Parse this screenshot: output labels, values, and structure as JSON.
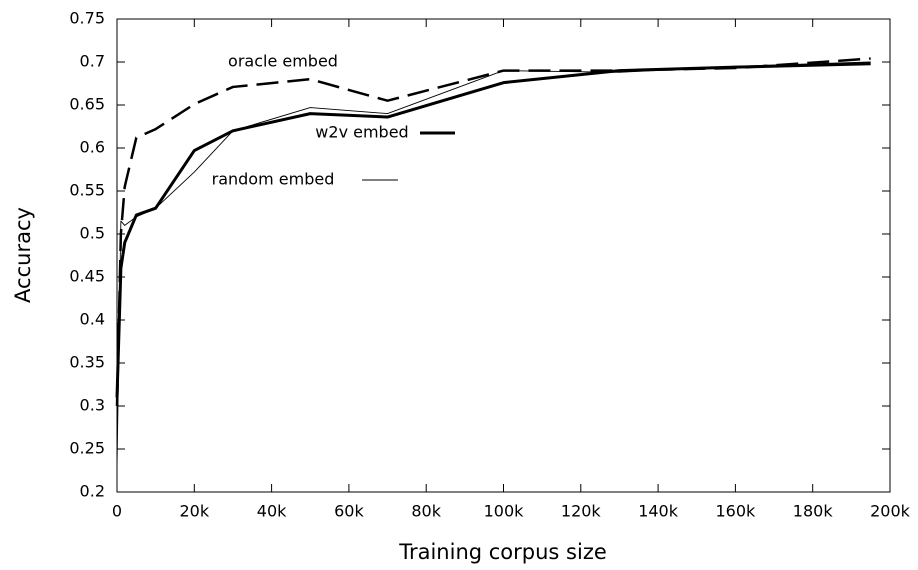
{
  "chart_data": {
    "type": "line",
    "xlabel": "Training corpus size",
    "ylabel": "Accuracy",
    "x": [
      0,
      1000,
      2000,
      5000,
      10000,
      20000,
      30000,
      50000,
      70000,
      100000,
      130000,
      160000,
      195000
    ],
    "series": [
      {
        "name": "oracle embed",
        "color": "#000000",
        "dashed": true,
        "values": [
          0.3,
          0.5,
          0.555,
          0.612,
          0.622,
          0.651,
          0.671,
          0.68,
          0.655,
          0.69,
          0.69,
          0.693,
          0.704
        ]
      },
      {
        "name": "w2v embed",
        "color": "#000000",
        "dashed": false,
        "values": [
          0.31,
          0.46,
          0.49,
          0.522,
          0.53,
          0.597,
          0.62,
          0.64,
          0.636,
          0.676,
          0.69,
          0.694,
          0.698
        ]
      },
      {
        "name": "random embed",
        "color": "#000000",
        "dashed": false,
        "values": [
          0.23,
          0.515,
          0.51,
          0.52,
          0.53,
          0.572,
          0.62,
          0.647,
          0.64,
          0.69,
          0.688,
          0.695,
          0.7
        ]
      }
    ],
    "xlim": [
      0,
      200000
    ],
    "xticks": [
      0,
      {
        "value": 20000,
        "label": "20k"
      },
      {
        "value": 40000,
        "label": "40k"
      },
      {
        "value": 60000,
        "label": "60k"
      },
      {
        "value": 80000,
        "label": "80k"
      },
      {
        "value": 100000,
        "label": "100k"
      },
      {
        "value": 120000,
        "label": "120k"
      },
      {
        "value": 140000,
        "label": "140k"
      },
      {
        "value": 160000,
        "label": "160k"
      },
      {
        "value": 180000,
        "label": "180k"
      },
      {
        "value": 200000,
        "label": "200k"
      }
    ],
    "ylim": [
      0.2,
      0.75
    ],
    "yticks": [
      0.2,
      0.25,
      0.3,
      0.35,
      0.4,
      0.45,
      0.5,
      0.55,
      0.6,
      0.65,
      0.7,
      0.75
    ],
    "grid": false
  }
}
